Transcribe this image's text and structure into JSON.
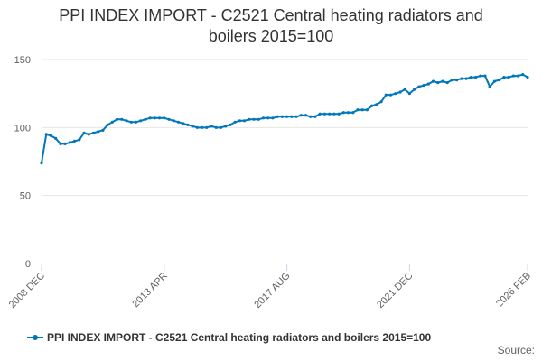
{
  "chart_data": {
    "type": "line",
    "title": "PPI INDEX IMPORT - C2521 Central heating radiators and boilers 2015=100",
    "title_lines": [
      "PPI INDEX IMPORT - C2521 Central heating radiators and",
      "boilers 2015=100"
    ],
    "xlabel": "",
    "ylabel": "",
    "ylim": [
      0,
      150
    ],
    "yticks": [
      0,
      50,
      100,
      150
    ],
    "xticks": [
      "2008 DEC",
      "2013 APR",
      "2017 AUG",
      "2021 DEC",
      "2026 FEB"
    ],
    "grid": true,
    "legend_position": "bottom",
    "color": "#0077bb",
    "series": [
      {
        "name": "PPI INDEX IMPORT - C2521 Central heating radiators and boilers 2015=100",
        "x": [
          "2008 DEC",
          "2009 JAN",
          "2009 APR",
          "2009 JUN",
          "2009 AUG",
          "2009 OCT",
          "2009 DEC",
          "2010 FEB",
          "2010 APR",
          "2010 JUN",
          "2010 AUG",
          "2010 OCT",
          "2010 DEC",
          "2011 FEB",
          "2011 APR",
          "2011 JUN",
          "2011 AUG",
          "2011 OCT",
          "2011 DEC",
          "2012 FEB",
          "2012 APR",
          "2012 JUN",
          "2012 AUG",
          "2012 OCT",
          "2012 DEC",
          "2013 FEB",
          "2013 APR",
          "2013 JUN",
          "2013 AUG",
          "2013 OCT",
          "2013 DEC",
          "2014 FEB",
          "2014 APR",
          "2014 JUN",
          "2014 AUG",
          "2014 OCT",
          "2014 DEC",
          "2015 FEB",
          "2015 APR",
          "2015 JUN",
          "2015 AUG",
          "2015 OCT",
          "2015 DEC",
          "2016 FEB",
          "2016 APR",
          "2016 JUN",
          "2016 AUG",
          "2016 OCT",
          "2016 DEC",
          "2017 FEB",
          "2017 APR",
          "2017 JUN",
          "2017 AUG",
          "2017 OCT",
          "2017 DEC",
          "2018 FEB",
          "2018 APR",
          "2018 JUN",
          "2018 AUG",
          "2018 OCT",
          "2018 DEC",
          "2019 FEB",
          "2019 APR",
          "2019 JUN",
          "2019 AUG",
          "2019 OCT",
          "2019 DEC",
          "2020 FEB",
          "2020 APR",
          "2020 JUN",
          "2020 AUG",
          "2020 OCT",
          "2020 DEC",
          "2021 FEB",
          "2021 APR",
          "2021 JUN",
          "2021 AUG",
          "2021 OCT",
          "2021 DEC",
          "2022 FEB",
          "2022 APR",
          "2022 JUN",
          "2022 AUG",
          "2022 OCT",
          "2022 DEC",
          "2023 FEB",
          "2023 APR",
          "2023 JUN",
          "2023 AUG",
          "2023 OCT",
          "2023 DEC",
          "2024 FEB",
          "2024 APR",
          "2024 JUN",
          "2024 AUG",
          "2024 OCT",
          "2024 DEC",
          "2025 FEB",
          "2025 APR",
          "2025 JUN",
          "2025 AUG",
          "2025 OCT",
          "2025 DEC",
          "2026 FEB"
        ],
        "values": [
          74,
          95,
          94,
          92,
          88,
          88,
          89,
          90,
          91,
          96,
          95,
          96,
          97,
          98,
          102,
          104,
          106,
          106,
          105,
          104,
          104,
          105,
          106,
          107,
          107,
          107,
          107,
          106,
          105,
          104,
          103,
          102,
          101,
          100,
          100,
          100,
          101,
          100,
          100,
          101,
          102,
          104,
          105,
          105,
          106,
          106,
          106,
          107,
          107,
          107,
          108,
          108,
          108,
          108,
          108,
          109,
          109,
          108,
          108,
          110,
          110,
          110,
          110,
          110,
          111,
          111,
          111,
          113,
          113,
          113,
          116,
          117,
          119,
          124,
          124,
          125,
          126,
          128,
          125,
          128,
          130,
          131,
          132,
          134,
          133,
          134,
          133,
          135,
          135,
          136,
          136,
          137,
          137,
          138,
          138,
          130,
          134,
          135,
          137,
          137,
          138,
          138,
          139,
          137
        ]
      }
    ]
  },
  "source_label": "Source:"
}
